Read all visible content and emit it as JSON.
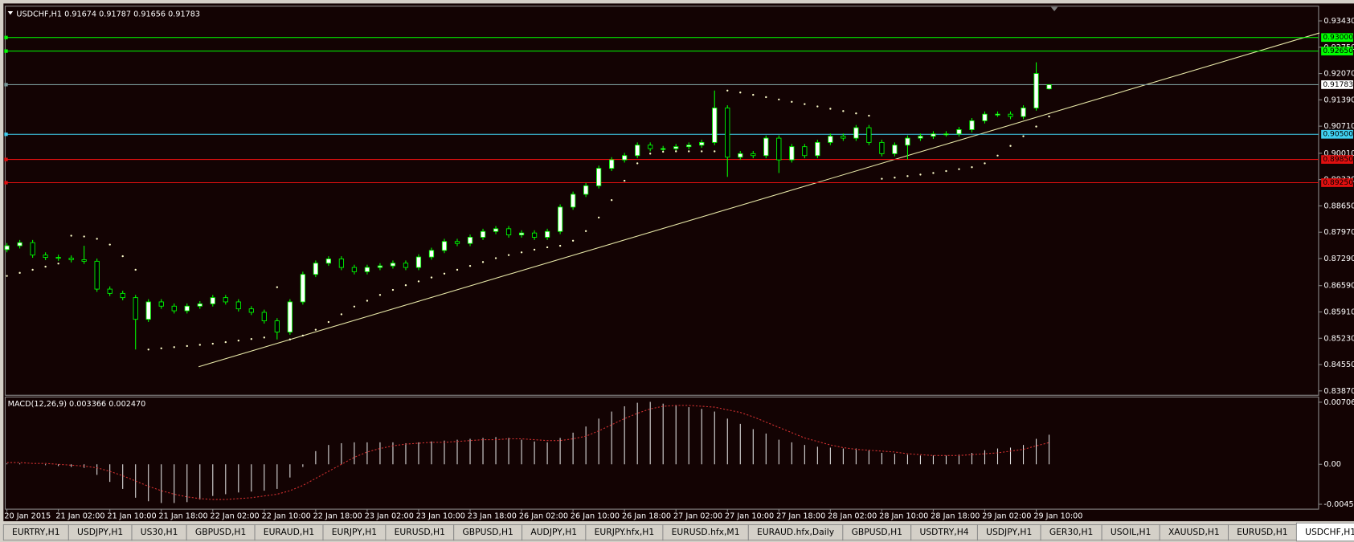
{
  "chart_data": [
    {
      "type": "candlestick",
      "title": "USDCHF,H1  0.91674 0.91787 0.91656 0.91783",
      "categories": [
        "20 Jan 2015",
        null,
        null,
        null,
        "21 Jan 02:00",
        null,
        null,
        null,
        "21 Jan 10:00",
        null,
        null,
        null,
        "21 Jan 18:00",
        null,
        null,
        null,
        "22 Jan 02:00",
        null,
        null,
        null,
        "22 Jan 10:00",
        null,
        null,
        null,
        "22 Jan 18:00",
        null,
        null,
        null,
        "23 Jan 02:00",
        null,
        null,
        null,
        "23 Jan 10:00",
        null,
        null,
        null,
        "23 Jan 18:00",
        null,
        null,
        null,
        "26 Jan 02:00",
        null,
        null,
        null,
        "26 Jan 10:00",
        null,
        null,
        null,
        "26 Jan 18:00",
        null,
        null,
        null,
        "27 Jan 02:00",
        null,
        null,
        null,
        "27 Jan 10:00",
        null,
        null,
        null,
        "27 Jan 18:00",
        null,
        null,
        null,
        "28 Jan 02:00",
        null,
        null,
        null,
        "28 Jan 10:00",
        null,
        null,
        null,
        "28 Jan 18:00",
        null,
        null,
        null,
        "29 Jan 02:00",
        null,
        null,
        null,
        "29 Jan 10:00",
        null
      ],
      "open": [
        0.8752,
        0.8762,
        0.877,
        0.8738,
        0.8732,
        0.873,
        0.8726,
        0.8722,
        0.865,
        0.8639,
        0.8628,
        0.8572,
        0.8617,
        0.8606,
        0.8594,
        0.8606,
        0.8612,
        0.8628,
        0.8617,
        0.8599,
        0.859,
        0.8568,
        0.8539,
        0.8617,
        0.8688,
        0.8717,
        0.8728,
        0.8706,
        0.8695,
        0.8706,
        0.871,
        0.8717,
        0.8706,
        0.8733,
        0.875,
        0.8773,
        0.8768,
        0.8784,
        0.8799,
        0.8806,
        0.879,
        0.8795,
        0.8784,
        0.8799,
        0.8862,
        0.8895,
        0.8917,
        0.8962,
        0.8984,
        0.8995,
        0.9022,
        0.9013,
        0.9013,
        0.9018,
        0.9022,
        0.9029,
        0.9118,
        0.8991,
        0.9,
        0.8995,
        0.904,
        0.8984,
        0.9018,
        0.8995,
        0.9029,
        0.9045,
        0.904,
        0.9067,
        0.9029,
        0.9,
        0.9022,
        0.904,
        0.9045,
        0.9051,
        0.9051,
        0.9062,
        0.9085,
        0.9102,
        0.9102,
        0.9096,
        0.9118,
        0.91674
      ],
      "high": [
        0.8769,
        0.8777,
        0.8777,
        0.8745,
        0.8739,
        0.8737,
        0.8762,
        0.8729,
        0.8657,
        0.8646,
        0.8635,
        0.8624,
        0.8624,
        0.8613,
        0.8613,
        0.8619,
        0.8635,
        0.8635,
        0.8624,
        0.8606,
        0.8597,
        0.8575,
        0.8624,
        0.8695,
        0.8724,
        0.8735,
        0.8735,
        0.8713,
        0.8713,
        0.8717,
        0.8724,
        0.8724,
        0.874,
        0.8757,
        0.878,
        0.878,
        0.8791,
        0.8806,
        0.8813,
        0.8813,
        0.8802,
        0.8802,
        0.8806,
        0.8869,
        0.8902,
        0.8924,
        0.8969,
        0.8991,
        0.9002,
        0.9029,
        0.9029,
        0.902,
        0.9025,
        0.9029,
        0.9036,
        0.9163,
        0.9125,
        0.9007,
        0.9007,
        0.9047,
        0.9047,
        0.9025,
        0.9025,
        0.9036,
        0.9052,
        0.9052,
        0.9074,
        0.9074,
        0.9036,
        0.9029,
        0.9047,
        0.9052,
        0.9058,
        0.9058,
        0.9069,
        0.9092,
        0.9109,
        0.9109,
        0.9109,
        0.9125,
        0.9236,
        0.91787
      ],
      "low": [
        0.8745,
        0.8755,
        0.8731,
        0.8725,
        0.8723,
        0.8719,
        0.8715,
        0.8643,
        0.8632,
        0.8621,
        0.8494,
        0.8565,
        0.8599,
        0.8587,
        0.8587,
        0.8599,
        0.8605,
        0.861,
        0.8592,
        0.8583,
        0.8561,
        0.852,
        0.8532,
        0.861,
        0.8681,
        0.871,
        0.8699,
        0.8688,
        0.8688,
        0.8699,
        0.8703,
        0.8699,
        0.8699,
        0.8726,
        0.8743,
        0.8761,
        0.8761,
        0.8777,
        0.8792,
        0.8783,
        0.8783,
        0.8777,
        0.8777,
        0.8792,
        0.8855,
        0.8888,
        0.891,
        0.8955,
        0.8977,
        0.8988,
        0.9006,
        0.9006,
        0.9006,
        0.9011,
        0.9015,
        0.9022,
        0.894,
        0.8984,
        0.8988,
        0.8988,
        0.895,
        0.8977,
        0.8988,
        0.8988,
        0.9022,
        0.9033,
        0.9033,
        0.9022,
        0.8993,
        0.8993,
        0.8985,
        0.9033,
        0.9038,
        0.9044,
        0.9044,
        0.9055,
        0.9078,
        0.9095,
        0.9089,
        0.9089,
        0.9111,
        0.91656
      ],
      "close": [
        0.8762,
        0.877,
        0.8738,
        0.8732,
        0.873,
        0.8726,
        0.8722,
        0.865,
        0.8639,
        0.8628,
        0.8572,
        0.8617,
        0.8606,
        0.8594,
        0.8606,
        0.8612,
        0.8628,
        0.8617,
        0.8599,
        0.859,
        0.8568,
        0.8539,
        0.8617,
        0.8688,
        0.8717,
        0.8728,
        0.8706,
        0.8695,
        0.8706,
        0.871,
        0.8717,
        0.8706,
        0.8733,
        0.875,
        0.8773,
        0.8768,
        0.8784,
        0.8799,
        0.8806,
        0.879,
        0.8795,
        0.8784,
        0.8799,
        0.8862,
        0.8895,
        0.8917,
        0.8962,
        0.8984,
        0.8995,
        0.9022,
        0.9013,
        0.9013,
        0.9018,
        0.9022,
        0.9029,
        0.9118,
        0.8991,
        0.9,
        0.8995,
        0.904,
        0.8984,
        0.9018,
        0.8995,
        0.9029,
        0.9045,
        0.904,
        0.9067,
        0.9029,
        0.9,
        0.9022,
        0.904,
        0.9045,
        0.9051,
        0.9051,
        0.9062,
        0.9085,
        0.9102,
        0.9102,
        0.9096,
        0.9118,
        0.9207,
        0.91783
      ],
      "up_color": "#ffffff",
      "down_color": "#000000",
      "wick_color": "#00ff00",
      "sar": {
        "color": "#ffffcc",
        "values": [
          0.8684,
          0.8692,
          0.87,
          0.8708,
          0.8716,
          0.8788,
          0.8786,
          0.878,
          0.8765,
          0.8735,
          0.87,
          0.8494,
          0.8497,
          0.85,
          0.8503,
          0.8506,
          0.8509,
          0.8513,
          0.8517,
          0.8521,
          0.8525,
          0.8655,
          0.852,
          0.853,
          0.8545,
          0.8565,
          0.8585,
          0.8605,
          0.862,
          0.8635,
          0.8648,
          0.866,
          0.867,
          0.868,
          0.869,
          0.87,
          0.871,
          0.872,
          0.873,
          0.8738,
          0.8745,
          0.8752,
          0.8758,
          0.8762,
          0.8775,
          0.88,
          0.8835,
          0.888,
          0.893,
          0.8975,
          0.9,
          0.9005,
          0.9006,
          0.9006,
          0.9006,
          0.9006,
          0.9163,
          0.9158,
          0.9152,
          0.9146,
          0.914,
          0.9134,
          0.9128,
          0.9122,
          0.9116,
          0.911,
          0.9104,
          0.9098,
          0.8935,
          0.8938,
          0.8942,
          0.8946,
          0.895,
          0.8955,
          0.896,
          0.8965,
          0.8975,
          0.8995,
          0.902,
          0.9045,
          0.907,
          0.9096
        ]
      },
      "trendline": {
        "color": "#e8e8a8",
        "values": [
          0.84494,
          0.93118
        ]
      },
      "levels": [
        {
          "value": 0.93,
          "label": "0.93000",
          "color": "#00ff00"
        },
        {
          "value": 0.9265,
          "label": "0.92650",
          "color": "#00ff00"
        },
        {
          "value": 0.91783,
          "label": "0.91783",
          "color": "#7a9a9a",
          "box": "#ffffff"
        },
        {
          "value": 0.905,
          "label": "0.90500",
          "color": "#40d0f0"
        },
        {
          "value": 0.8985,
          "label": "0.89850",
          "color": "#e01010"
        },
        {
          "value": 0.8925,
          "label": "0.89250",
          "color": "#e01010"
        }
      ],
      "ylim": [
        0.8378,
        0.9379
      ],
      "yticks": [
        {
          "value": 0.9343,
          "label": "0.93430"
        },
        {
          "value": 0.9275,
          "label": "0.92750"
        },
        {
          "value": 0.9207,
          "label": "0.92070"
        },
        {
          "value": 0.9139,
          "label": "0.91390"
        },
        {
          "value": 0.9071,
          "label": "0.90710"
        },
        {
          "value": 0.9001,
          "label": "0.90010"
        },
        {
          "value": 0.8933,
          "label": "0.89330"
        },
        {
          "value": 0.8865,
          "label": "0.88650"
        },
        {
          "value": 0.8797,
          "label": "0.87970"
        },
        {
          "value": 0.8729,
          "label": "0.87290"
        },
        {
          "value": 0.8659,
          "label": "0.86590"
        },
        {
          "value": 0.8591,
          "label": "0.85910"
        },
        {
          "value": 0.8523,
          "label": "0.85230"
        },
        {
          "value": 0.8455,
          "label": "0.84550"
        },
        {
          "value": 0.8387,
          "label": "0.83870"
        }
      ],
      "grid": false
    },
    {
      "type": "macd",
      "title": "MACD(12,26,9) 0.003366 0.002470",
      "color": "#e0e0e0",
      "values": [
        0.0001,
        0.0001,
        0.0,
        -0.0001,
        -0.0002,
        -0.0003,
        -0.0004,
        -0.0012,
        -0.002,
        -0.0028,
        -0.0038,
        -0.0042,
        -0.0044,
        -0.0044,
        -0.0043,
        -0.004,
        -0.0036,
        -0.0034,
        -0.0032,
        -0.0031,
        -0.003,
        -0.0028,
        -0.0015,
        -0.0003,
        0.0015,
        0.0022,
        0.0024,
        0.0025,
        0.0025,
        0.0025,
        0.0025,
        0.0024,
        0.0025,
        0.0026,
        0.0027,
        0.0028,
        0.0029,
        0.003,
        0.0031,
        0.003,
        0.0028,
        0.0026,
        0.0025,
        0.003,
        0.0036,
        0.0043,
        0.0052,
        0.006,
        0.0066,
        0.007,
        0.0071,
        0.0069,
        0.0067,
        0.0065,
        0.0063,
        0.006,
        0.0052,
        0.0046,
        0.004,
        0.0035,
        0.0028,
        0.0025,
        0.0022,
        0.002,
        0.0019,
        0.0018,
        0.0018,
        0.0016,
        0.0013,
        0.0012,
        0.0011,
        0.001,
        0.001,
        0.001,
        0.0011,
        0.0013,
        0.0016,
        0.0018,
        0.0019,
        0.0022,
        0.0029,
        0.003366
      ],
      "signal": {
        "color": "#d03030",
        "dashed": true,
        "values": [
          0.0002,
          0.0002,
          0.0001,
          0.0001,
          0.0,
          -0.0001,
          -0.0002,
          -0.0004,
          -0.0008,
          -0.0013,
          -0.0019,
          -0.0025,
          -0.003,
          -0.0034,
          -0.0037,
          -0.0039,
          -0.004,
          -0.004,
          -0.0039,
          -0.0038,
          -0.0036,
          -0.0034,
          -0.003,
          -0.0024,
          -0.0016,
          -0.0008,
          0.0,
          0.0008,
          0.0014,
          0.0018,
          0.0021,
          0.0023,
          0.0024,
          0.0025,
          0.0025,
          0.0026,
          0.0027,
          0.0028,
          0.0028,
          0.0029,
          0.0029,
          0.0028,
          0.0027,
          0.0027,
          0.0029,
          0.0032,
          0.0038,
          0.0045,
          0.0052,
          0.0058,
          0.0063,
          0.0066,
          0.0067,
          0.0067,
          0.0066,
          0.0065,
          0.0062,
          0.0059,
          0.0054,
          0.0048,
          0.0042,
          0.0036,
          0.003,
          0.0026,
          0.0022,
          0.0019,
          0.0017,
          0.0016,
          0.0015,
          0.0014,
          0.0012,
          0.0011,
          0.001,
          0.001,
          0.001,
          0.0011,
          0.0012,
          0.0013,
          0.0015,
          0.0017,
          0.0021,
          0.00247
        ]
      },
      "ylim": [
        -0.0051,
        0.00756
      ],
      "yticks": [
        0.007065,
        {
          "value": 0,
          "label": "0.00"
        },
        -0.004544
      ],
      "grid": false
    }
  ],
  "tabs": {
    "active": 19,
    "items": [
      "EURTRY,H1",
      "USDJPY,H1",
      "US30,H1",
      "GBPUSD,H1",
      "EURAUD,H1",
      "EURJPY,H1",
      "EURUSD,H1",
      "GBPUSD,H1",
      "AUDJPY,H1",
      "EURJPY.hfx,H1",
      "EURUSD.hfx,M1",
      "EURAUD.hfx,Daily",
      "GBPUSD,H1",
      "USDTRY,H4",
      "USDJPY,H1",
      "GER30,H1",
      "USOIL,H1",
      "XAUUSD,H1",
      "EURUSD,H1",
      "USDCHF,H1"
    ]
  }
}
